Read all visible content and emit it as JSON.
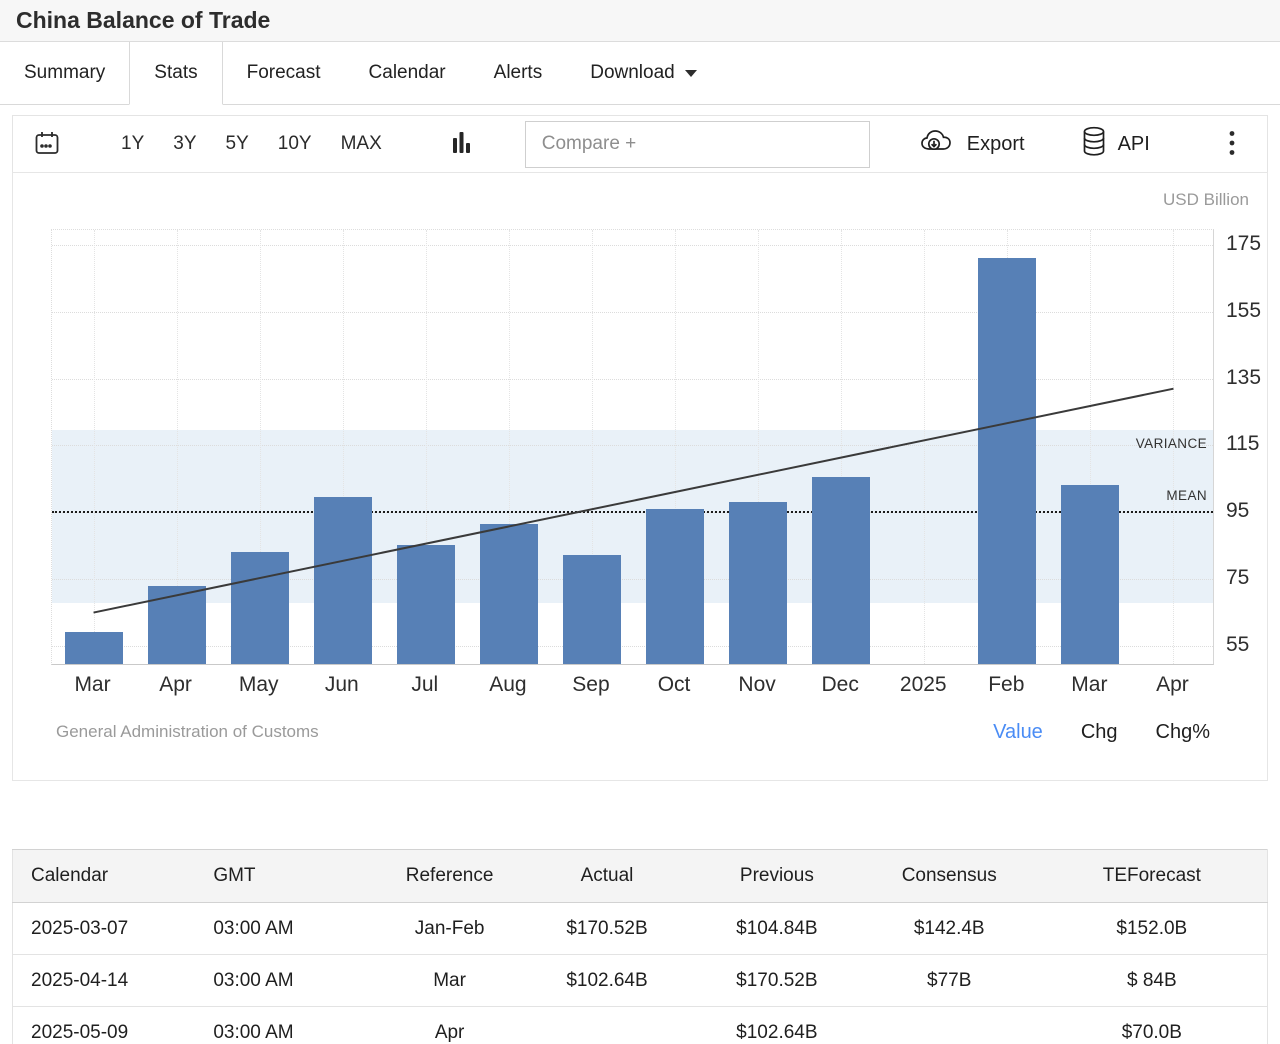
{
  "header": {
    "title": "China Balance of Trade"
  },
  "tabs": [
    {
      "label": "Summary",
      "active": false
    },
    {
      "label": "Stats",
      "active": true
    },
    {
      "label": "Forecast",
      "active": false
    },
    {
      "label": "Calendar",
      "active": false
    },
    {
      "label": "Alerts",
      "active": false
    },
    {
      "label": "Download",
      "active": false,
      "caret": true
    }
  ],
  "toolbar": {
    "calendar_icon": "calendar-icon",
    "ranges": [
      "1Y",
      "3Y",
      "5Y",
      "10Y",
      "MAX"
    ],
    "bar_chart_icon": "bar-chart-icon",
    "compare_placeholder": "Compare +",
    "export_label": "Export",
    "api_label": "API",
    "kebab_icon": "kebab-menu-icon"
  },
  "chart": {
    "unit_label": "USD Billion",
    "variance_label": "VARIANCE",
    "mean_label": "MEAN",
    "source": "General Administration of Customs",
    "links": [
      {
        "label": "Value",
        "active": true
      },
      {
        "label": "Chg",
        "active": false
      },
      {
        "label": "Chg%",
        "active": false
      }
    ],
    "colors": {
      "bar": "#5780b6",
      "variance_band": "#e9f1f8",
      "trend_line": "#3a3a3a",
      "mean_line": "#1c1c1c",
      "active_link": "#4a8cf5"
    }
  },
  "chart_data": {
    "type": "bar",
    "title": "China Balance of Trade",
    "ylabel": "USD Billion",
    "categories": [
      "Mar",
      "Apr",
      "May",
      "Jun",
      "Jul",
      "Aug",
      "Sep",
      "Oct",
      "Nov",
      "Dec",
      "2025",
      "Feb",
      "Mar",
      "Apr"
    ],
    "values": [
      58.6,
      72.4,
      82.6,
      99.1,
      84.7,
      91.0,
      81.7,
      95.3,
      97.4,
      104.84,
      null,
      170.52,
      102.64,
      null
    ],
    "ylim": [
      49,
      179.5
    ],
    "yticks": [
      175,
      155,
      135,
      115,
      95,
      75,
      55
    ],
    "mean": 95,
    "variance_band": [
      68,
      119.5
    ],
    "trend": {
      "start_value": 65,
      "end_value": 132,
      "start_index": 0,
      "end_index": 13
    },
    "grid": true,
    "legend_position": "none"
  },
  "table": {
    "headers": [
      "Calendar",
      "GMT",
      "Reference",
      "Actual",
      "Previous",
      "Consensus",
      "TEForecast"
    ],
    "rows": [
      [
        "2025-03-07",
        "03:00 AM",
        "Jan-Feb",
        "$170.52B",
        "$104.84B",
        "$142.4B",
        "$152.0B"
      ],
      [
        "2025-04-14",
        "03:00 AM",
        "Mar",
        "$102.64B",
        "$170.52B",
        "$77B",
        "$ 84B"
      ],
      [
        "2025-05-09",
        "03:00 AM",
        "Apr",
        "",
        "$102.64B",
        "",
        "$70.0B"
      ]
    ]
  }
}
